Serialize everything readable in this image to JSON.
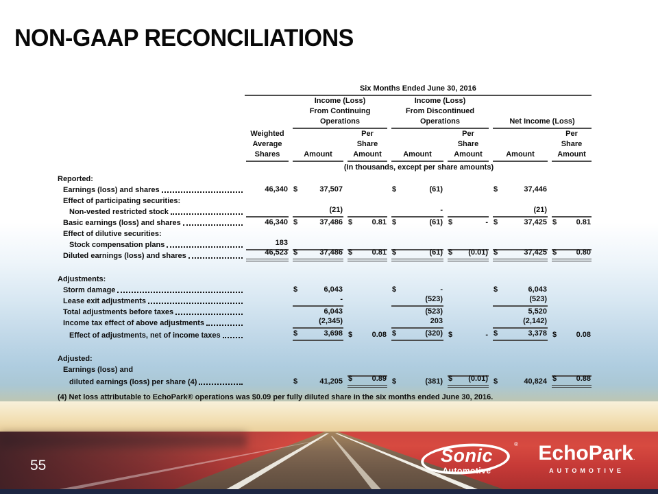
{
  "slide": {
    "title": "NON-GAAP RECONCILIATIONS",
    "page_number": "55",
    "footnote": "(4) Net loss attributable to EchoPark® operations was $0.09 per fully diluted share in the six months ended June 30, 2016."
  },
  "table": {
    "period_header": "Six Months Ended June 30, 2016",
    "units_note": "(In thousands, except per share amounts)",
    "groups": [
      {
        "line1": "Income (Loss)",
        "line2": "From Continuing",
        "line3": "Operations"
      },
      {
        "line1": "Income (Loss)",
        "line2": "From Discontinued",
        "line3": "Operations"
      },
      {
        "line1": "",
        "line2": "",
        "line3": "Net Income (Loss)"
      }
    ],
    "shares_header": [
      "Weighted",
      "Average",
      "Shares"
    ],
    "amount_header": "Amount",
    "per_share_header": [
      "Per",
      "Share",
      "Amount"
    ],
    "rows": [
      {
        "type": "section",
        "label": "Reported:"
      },
      {
        "type": "item",
        "indent": 1,
        "label": "Earnings (loss) and shares",
        "dots": true,
        "cells": {
          "shares": {
            "val": "46,340"
          },
          "amt1": {
            "sym": "$",
            "val": "37,507"
          },
          "amt2": {
            "sym": "$",
            "val": "(61)"
          },
          "amt3": {
            "sym": "$",
            "val": "37,446"
          }
        }
      },
      {
        "type": "item",
        "indent": 1,
        "label": "Effect of participating securities:"
      },
      {
        "type": "item",
        "indent": 2,
        "label": "Non-vested restricted stock",
        "dots": true,
        "cells": {
          "amt1": {
            "val": "(21)"
          },
          "amt2": {
            "val": "-"
          },
          "amt3": {
            "val": "(21)"
          }
        },
        "lines": {
          "bottom": [
            "shares",
            "amt1",
            "ps1",
            "amt2",
            "ps2",
            "amt3",
            "ps3"
          ]
        }
      },
      {
        "type": "item",
        "indent": 1,
        "label": "Basic earnings (loss) and shares",
        "dots": true,
        "cells": {
          "shares": {
            "val": "46,340"
          },
          "amt1": {
            "sym": "$",
            "val": "37,486"
          },
          "ps1": {
            "sym": "$",
            "val": "0.81"
          },
          "amt2": {
            "sym": "$",
            "val": "(61)"
          },
          "ps2": {
            "sym": "$",
            "val": "-"
          },
          "amt3": {
            "sym": "$",
            "val": "37,425"
          },
          "ps3": {
            "sym": "$",
            "val": "0.81"
          }
        }
      },
      {
        "type": "item",
        "indent": 1,
        "label": "Effect of dilutive securities:"
      },
      {
        "type": "item",
        "indent": 2,
        "label": "Stock compensation plans",
        "dots": true,
        "cells": {
          "shares": {
            "val": "183"
          }
        },
        "lines": {
          "bottom": [
            "shares",
            "amt1",
            "ps1",
            "amt2",
            "ps2",
            "amt3",
            "ps3"
          ]
        }
      },
      {
        "type": "item",
        "indent": 1,
        "label": "Diluted earnings (loss) and shares",
        "dots": true,
        "cells": {
          "shares": {
            "val": "46,523"
          },
          "amt1": {
            "sym": "$",
            "val": "37,486"
          },
          "ps1": {
            "sym": "$",
            "val": "0.81"
          },
          "amt2": {
            "sym": "$",
            "val": "(61)"
          },
          "ps2": {
            "sym": "$",
            "val": "(0.01)"
          },
          "amt3": {
            "sym": "$",
            "val": "37,425"
          },
          "ps3": {
            "sym": "$",
            "val": "0.80"
          }
        },
        "lines": {
          "dbottom": [
            "shares",
            "amt1",
            "ps1",
            "amt2",
            "ps2",
            "amt3",
            "ps3"
          ]
        }
      },
      {
        "type": "spacer"
      },
      {
        "type": "section",
        "label": "Adjustments:"
      },
      {
        "type": "item",
        "indent": 1,
        "label": "Storm damage",
        "dots": true,
        "cells": {
          "amt1": {
            "sym": "$",
            "val": "6,043"
          },
          "amt2": {
            "sym": "$",
            "val": "-"
          },
          "amt3": {
            "sym": "$",
            "val": "6,043"
          }
        }
      },
      {
        "type": "item",
        "indent": 1,
        "label": "Lease exit adjustments",
        "dots": true,
        "cells": {
          "amt1": {
            "val": "-"
          },
          "amt2": {
            "val": "(523)"
          },
          "amt3": {
            "val": "(523)"
          }
        },
        "lines": {
          "bottom": [
            "amt1",
            "amt2",
            "amt3"
          ]
        }
      },
      {
        "type": "item",
        "indent": 1,
        "label": "Total adjustments before taxes",
        "dots": true,
        "cells": {
          "amt1": {
            "val": "6,043"
          },
          "amt2": {
            "val": "(523)"
          },
          "amt3": {
            "val": "5,520"
          }
        }
      },
      {
        "type": "item",
        "indent": 1,
        "label": "Income tax effect of above adjustments",
        "dots": true,
        "cells": {
          "amt1": {
            "val": "(2,345)"
          },
          "amt2": {
            "val": "203"
          },
          "amt3": {
            "val": "(2,142)"
          }
        },
        "lines": {
          "bottom": [
            "amt1",
            "amt2",
            "amt3"
          ]
        }
      },
      {
        "type": "item",
        "indent": 2,
        "tall": true,
        "label": "Effect of adjustments, net of income taxes",
        "dots": true,
        "cells": {
          "amt1": {
            "sym": "$",
            "val": "3,698"
          },
          "ps1": {
            "sym": "$",
            "val": "0.08"
          },
          "amt2": {
            "sym": "$",
            "val": "(320)"
          },
          "ps2": {
            "sym": "$",
            "val": "-"
          },
          "amt3": {
            "sym": "$",
            "val": "3,378"
          },
          "ps3": {
            "sym": "$",
            "val": "0.08"
          }
        },
        "lines": {
          "bottom": [
            "amt1",
            "amt2",
            "amt3"
          ]
        }
      },
      {
        "type": "spacer"
      },
      {
        "type": "section",
        "label": "Adjusted:"
      },
      {
        "type": "item",
        "indent": 1,
        "label": "Earnings (loss) and"
      },
      {
        "type": "item",
        "indent": 2,
        "tall": true,
        "label": "diluted earnings (loss) per share (4)",
        "dots": true,
        "cells": {
          "amt1": {
            "sym": "$",
            "val": "41,205"
          },
          "ps1": {
            "sym": "$",
            "val": "0.89"
          },
          "amt2": {
            "sym": "$",
            "val": "(381)"
          },
          "ps2": {
            "sym": "$",
            "val": "(0.01)"
          },
          "amt3": {
            "sym": "$",
            "val": "40,824"
          },
          "ps3": {
            "sym": "$",
            "val": "0.88"
          }
        },
        "lines": {
          "top": [
            "ps1",
            "ps2",
            "ps3"
          ],
          "dbottom": [
            "ps1",
            "ps2",
            "ps3"
          ]
        }
      }
    ]
  },
  "branding": {
    "sonic_name": "Sonic",
    "sonic_sub": "Automotive",
    "sonic_reg": "®",
    "echopark_name": "EchoPark",
    "echopark_mark": ".",
    "echopark_sub": "AUTOMOTIVE"
  },
  "colors": {
    "accent_red": "#c63a37",
    "navy_bar": "#1d2642",
    "table_line": "#4c4c4c"
  }
}
